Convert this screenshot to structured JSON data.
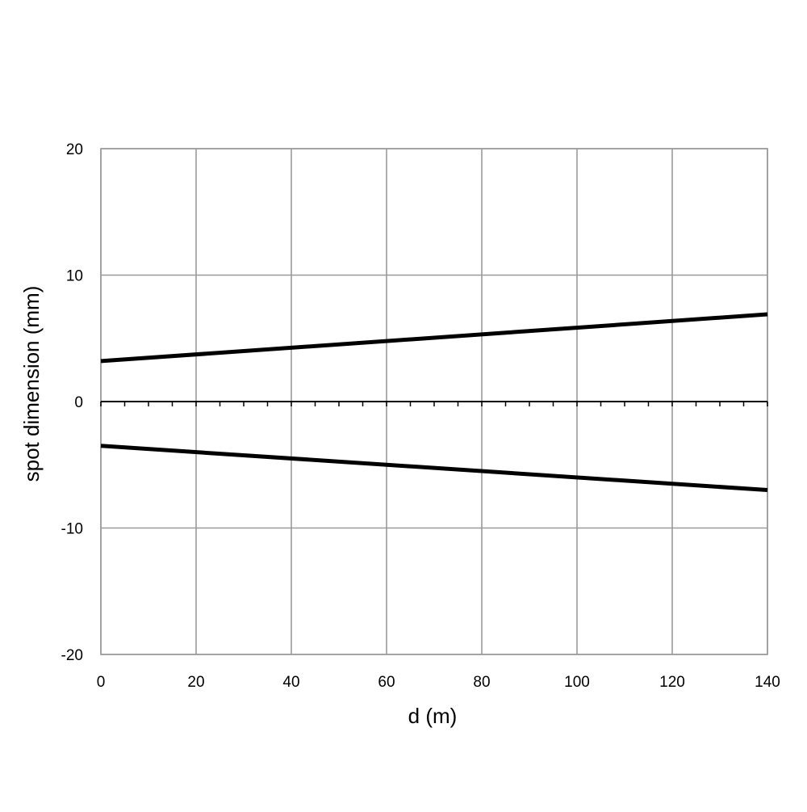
{
  "chart_data": {
    "type": "line",
    "title": "",
    "xlabel": "d (m)",
    "ylabel": "spot dimension (mm)",
    "xlim": [
      0,
      140
    ],
    "ylim": [
      -20,
      20
    ],
    "x_ticks": [
      0,
      20,
      40,
      60,
      80,
      100,
      120,
      140
    ],
    "y_ticks": [
      20,
      10,
      0,
      -10,
      -20
    ],
    "x_tick_labels": [
      "0",
      "20",
      "40",
      "60",
      "80",
      "100",
      "120",
      "140"
    ],
    "y_tick_labels": [
      "20",
      "10",
      "0",
      "-10",
      "-20"
    ],
    "x_minor_tick_step": 5,
    "grid": true,
    "legend": "none",
    "line_color": "#000000",
    "grid_color": "#9a9a9a",
    "series": [
      {
        "x": [
          0,
          140
        ],
        "values": [
          3.2,
          6.9
        ]
      },
      {
        "x": [
          0,
          140
        ],
        "values": [
          -3.5,
          -7.0
        ]
      }
    ]
  }
}
